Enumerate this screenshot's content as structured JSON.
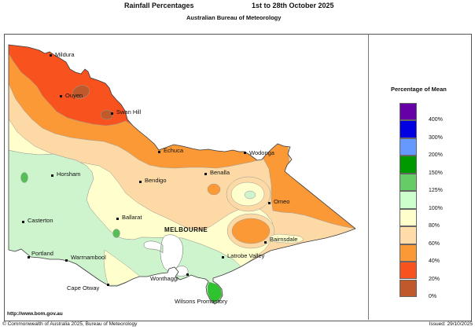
{
  "header": {
    "title_left": "Rainfall Percentages",
    "title_right": "1st to 28th October 2025",
    "subtitle": "Australian Bureau of Meteorology"
  },
  "legend": {
    "title": "Percentage of Mean",
    "items": [
      {
        "color": "#6600A6",
        "label": "400%"
      },
      {
        "color": "#0000E3",
        "label": "300%"
      },
      {
        "color": "#6699FF",
        "label": "200%"
      },
      {
        "color": "#009900",
        "label": "150%"
      },
      {
        "color": "#66CC66",
        "label": "125%"
      },
      {
        "color": "#CCFFCC",
        "label": "100%"
      },
      {
        "color": "#FFFFCC",
        "label": "80%"
      },
      {
        "color": "#FFDCA8",
        "label": "60%"
      },
      {
        "color": "#FB9937",
        "label": "40%"
      },
      {
        "color": "#F8531F",
        "label": "20%"
      },
      {
        "color": "#C05A2B",
        "label": "0%"
      }
    ]
  },
  "map": {
    "colors": {
      "peach": "#FCD9A5",
      "orange": "#FB9937",
      "red": "#F8531F",
      "brown": "#C05A2B",
      "cream": "#FFFFCD",
      "green_pale": "#CDF4CD",
      "green_mid": "#57BE57",
      "green_prom": "#2FC32F",
      "bay": "#FFFFFF"
    },
    "cities": [
      {
        "name": "Mildura",
        "dot": [
          64,
          70
        ],
        "label": [
          70,
          66
        ]
      },
      {
        "name": "Ouyen",
        "dot": [
          77,
          122
        ],
        "label": [
          83,
          118
        ]
      },
      {
        "name": "Swan Hill",
        "dot": [
          142,
          144
        ],
        "label": [
          148,
          139
        ]
      },
      {
        "name": "Echuca",
        "dot": [
          202,
          193
        ],
        "label": [
          208,
          188
        ]
      },
      {
        "name": "Wodonga",
        "dot": [
          311,
          194
        ],
        "label": [
          317,
          191
        ]
      },
      {
        "name": "Benalla",
        "dot": [
          261,
          221
        ],
        "label": [
          267,
          216
        ]
      },
      {
        "name": "Bendigo",
        "dot": [
          178,
          231
        ],
        "label": [
          184,
          226
        ]
      },
      {
        "name": "Horsham",
        "dot": [
          66,
          223
        ],
        "label": [
          72,
          218
        ]
      },
      {
        "name": "Omeo",
        "dot": [
          342,
          258
        ],
        "label": [
          348,
          253
        ]
      },
      {
        "name": "Casterton",
        "dot": [
          29,
          282
        ],
        "label": [
          35,
          277
        ]
      },
      {
        "name": "Ballarat",
        "dot": [
          149,
          278
        ],
        "label": [
          155,
          273
        ]
      },
      {
        "name": "MELBOURNE",
        "label": [
          209,
          289
        ],
        "caps": true
      },
      {
        "name": "Bairnsdale",
        "dot": [
          337,
          308
        ],
        "label": [
          343,
          301
        ]
      },
      {
        "name": "Portland",
        "dot": [
          36,
          327
        ],
        "label": [
          40,
          319
        ]
      },
      {
        "name": "Warrnambool",
        "dot": [
          84,
          331
        ],
        "label": [
          90,
          324
        ]
      },
      {
        "name": "Latrobe Valley",
        "dot": [
          283,
          327
        ],
        "label": [
          289,
          322
        ]
      },
      {
        "name": "Wonthaggi",
        "dot": [
          238,
          349
        ],
        "label": [
          191,
          351
        ]
      },
      {
        "name": "Cape Otway",
        "dot": [
          137,
          362
        ],
        "label": [
          85,
          363
        ]
      },
      {
        "name": "Wilsons Promontory",
        "label": [
          222,
          380
        ]
      }
    ]
  },
  "footer": {
    "url": "http://www.bom.gov.au",
    "copyright": "© Commonwealth of Australia 2025, Bureau of Meteorology",
    "issued": "Issued: 29/10/2025"
  }
}
